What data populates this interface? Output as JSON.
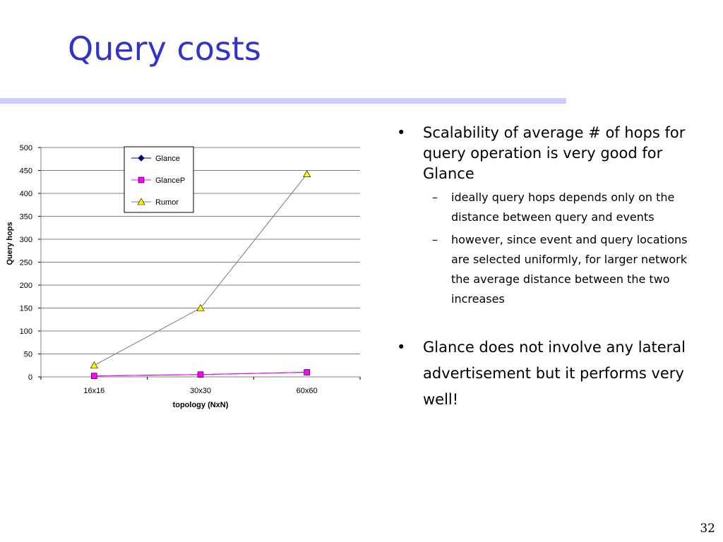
{
  "slide": {
    "title": "Query costs",
    "page_number": "32"
  },
  "bullets": [
    {
      "text": "Scalability of average # of hops for query operation is very good for Glance",
      "sub": [
        "ideally query hops depends only on the distance between query and events",
        "however, since event and query locations are selected uniformly, for larger network the average distance between the two increases"
      ]
    },
    {
      "text": "Glance does not involve any lateral advertisement but it performs very well!",
      "sub": []
    }
  ],
  "chart_data": {
    "type": "line",
    "categories": [
      "16x16",
      "30x30",
      "60x60"
    ],
    "series": [
      {
        "name": "Glance",
        "values": [
          2,
          5,
          10
        ],
        "color": "#000080",
        "marker": "diamond"
      },
      {
        "name": "GlanceP",
        "values": [
          2,
          5,
          10
        ],
        "color": "#ff00ff",
        "marker": "square"
      },
      {
        "name": "Rumor",
        "values": [
          25,
          150,
          442
        ],
        "color": "#ffff00",
        "marker": "triangle"
      }
    ],
    "xlabel": "topology (NxN)",
    "ylabel": "Query hops",
    "ylim": [
      0,
      500
    ],
    "yticks": [
      0,
      50,
      100,
      150,
      200,
      250,
      300,
      350,
      400,
      450,
      500
    ],
    "grid": true,
    "legend": "top-left"
  }
}
